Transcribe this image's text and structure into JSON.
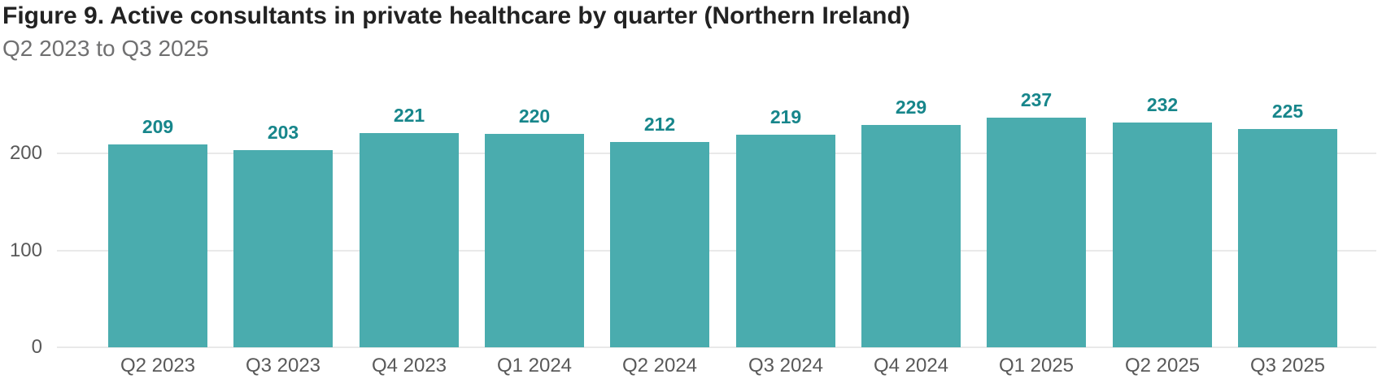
{
  "figure": {
    "title": "Figure 9. Active consultants in private healthcare by quarter (Northern Ireland)",
    "subtitle": "Q2 2023 to Q3 2025"
  },
  "colors": {
    "bar": "#4aacae",
    "bar_value_label": "#17868b",
    "title_text": "#222222",
    "subtitle_text": "#707071",
    "axis_text": "#595959",
    "gridline": "#e9e9e9",
    "background": "#ffffff"
  },
  "chart_data": {
    "type": "bar",
    "categories": [
      "Q2 2023",
      "Q3 2023",
      "Q4 2023",
      "Q1 2024",
      "Q2 2024",
      "Q3 2024",
      "Q4 2024",
      "Q1 2025",
      "Q2 2025",
      "Q3 2025"
    ],
    "values": [
      209,
      203,
      221,
      220,
      212,
      219,
      229,
      237,
      232,
      225
    ],
    "title": "Figure 9. Active consultants in private healthcare by quarter (Northern Ireland)",
    "subtitle": "Q2 2023 to Q3 2025",
    "xlabel": "",
    "ylabel": "",
    "yticks": [
      0,
      100,
      200
    ],
    "ylim": [
      0,
      240
    ],
    "grid": "horizontal",
    "legend": "none",
    "data_labels": true
  }
}
